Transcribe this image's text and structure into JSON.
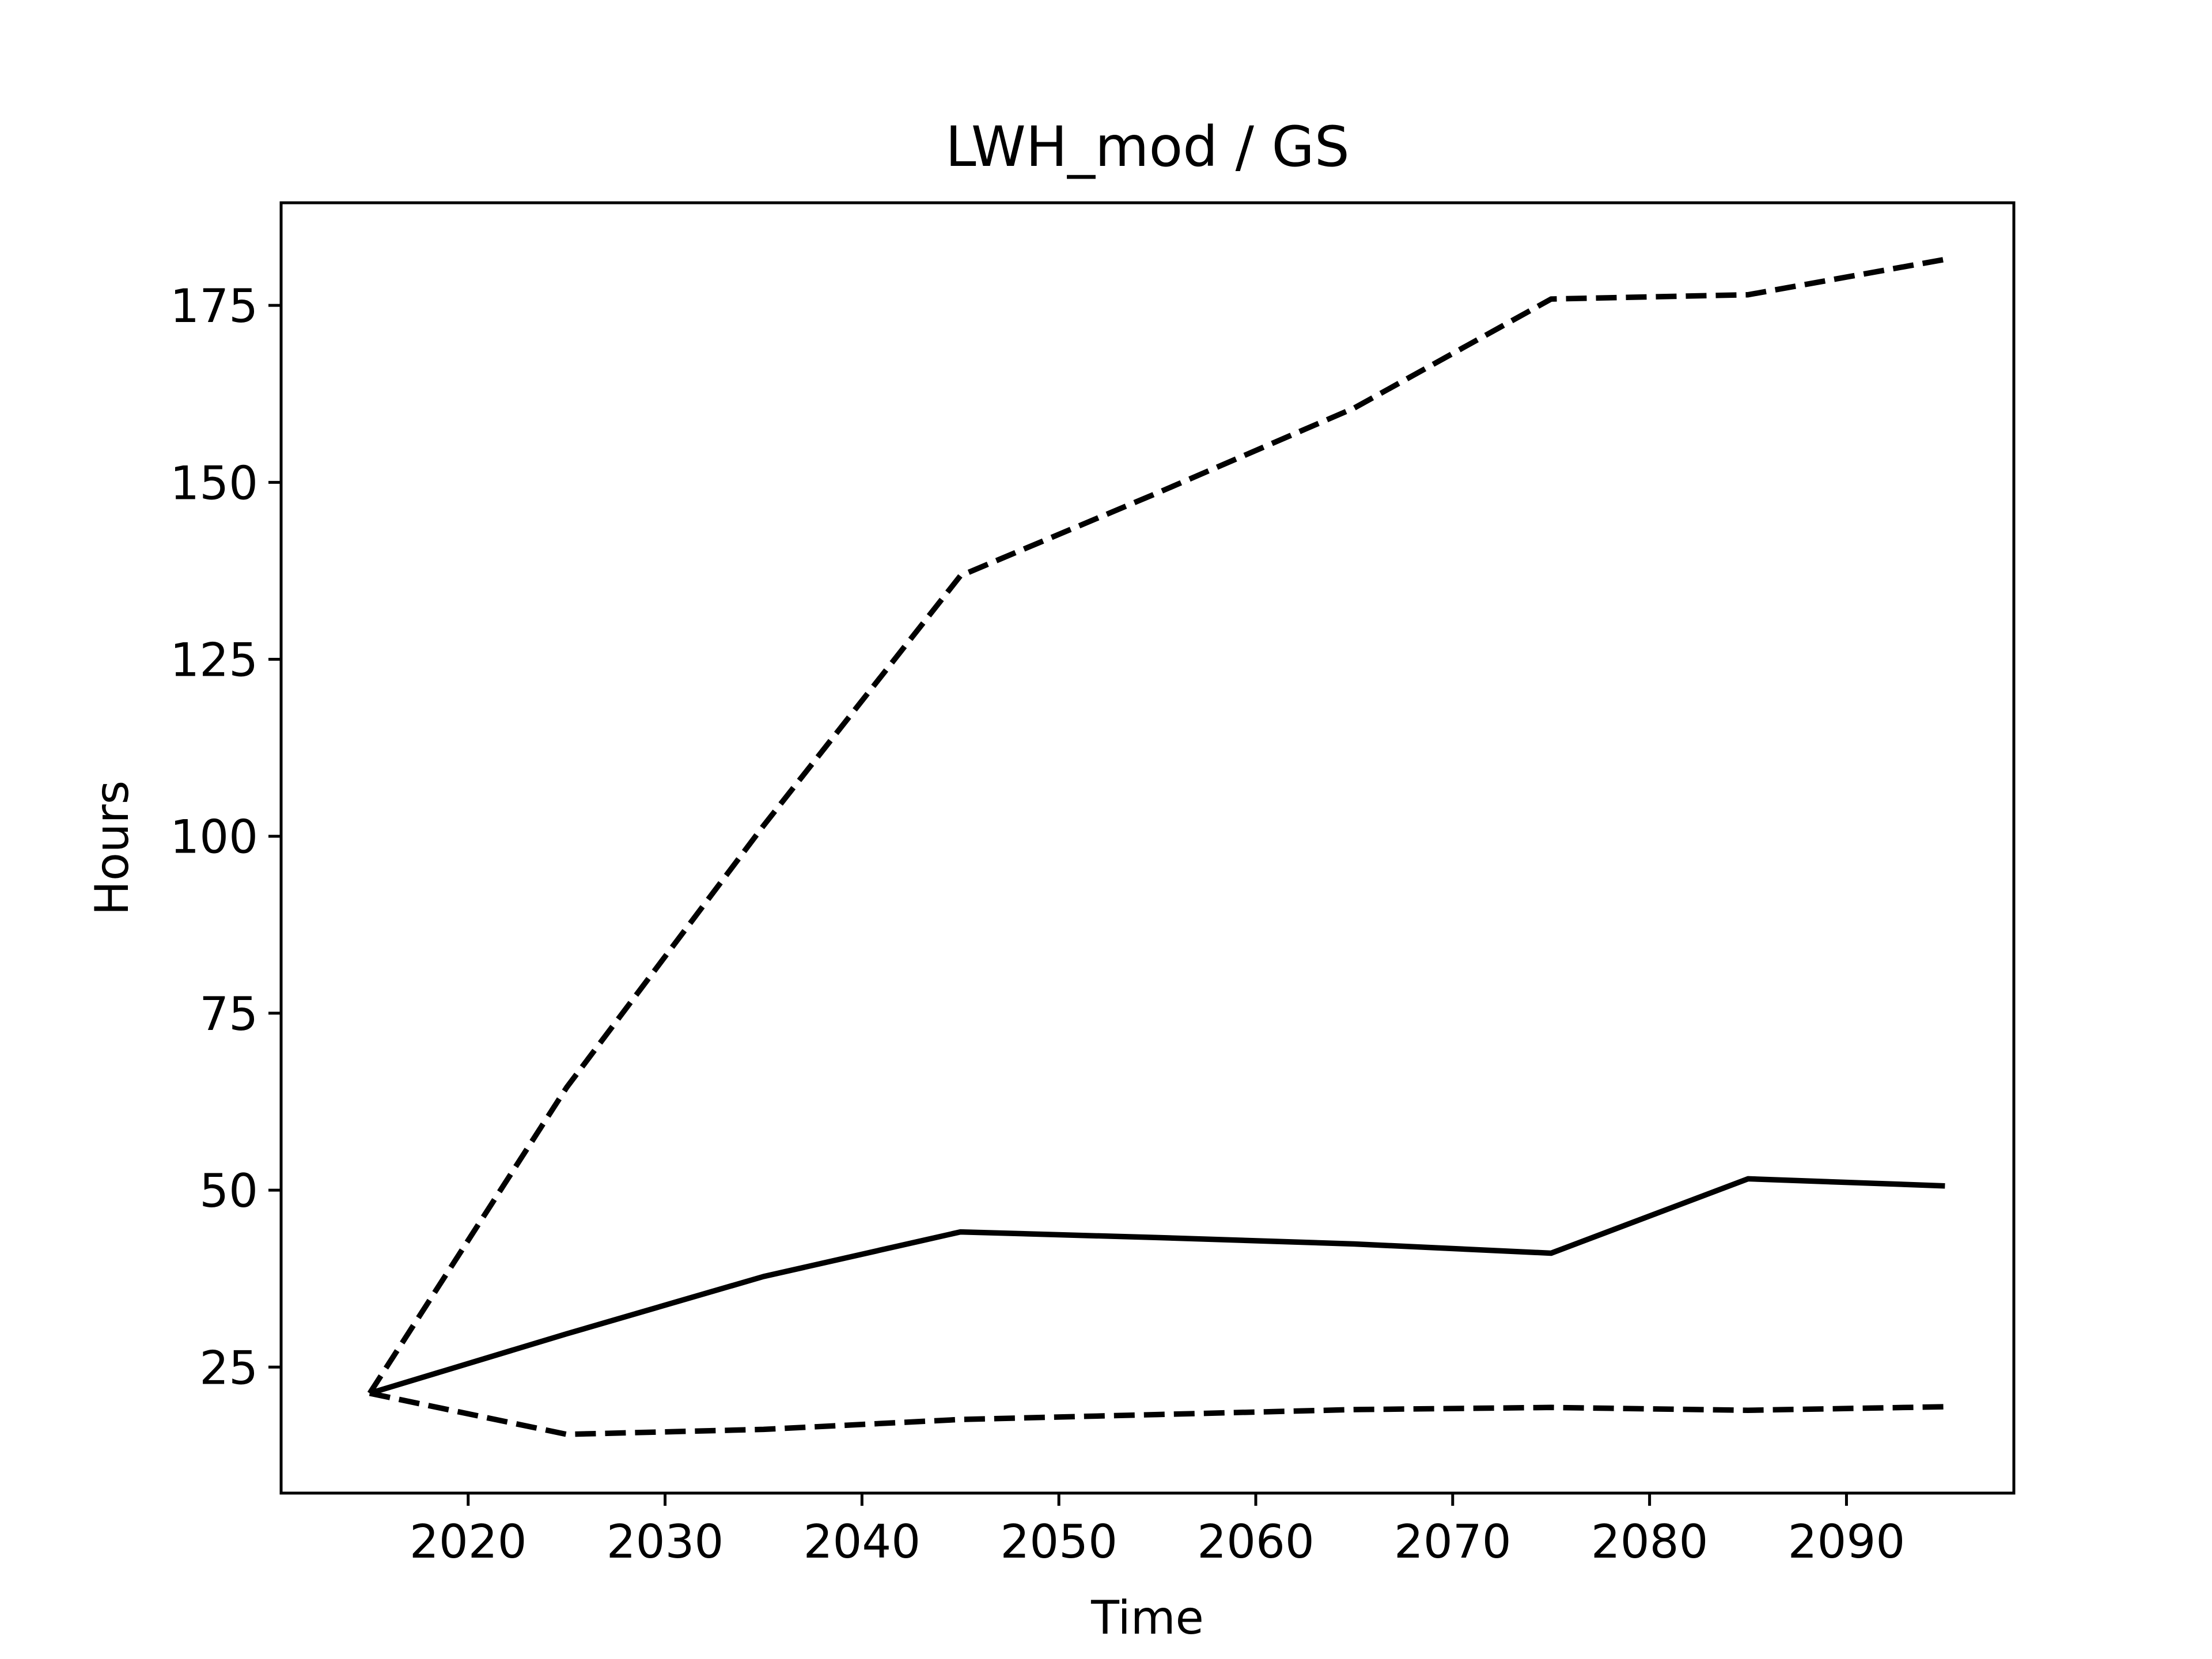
{
  "chart_data": {
    "type": "line",
    "title": "LWH_mod / GS",
    "xlabel": "Time",
    "ylabel": "Hours",
    "xlim": [
      2010.5,
      2098.5
    ],
    "ylim": [
      7.2,
      189.5
    ],
    "xticks": [
      2020,
      2030,
      2040,
      2050,
      2060,
      2070,
      2080,
      2090
    ],
    "yticks": [
      25,
      50,
      75,
      100,
      125,
      150,
      175
    ],
    "grid": false,
    "legend": "none",
    "x": [
      2015,
      2025,
      2035,
      2045,
      2055,
      2065,
      2075,
      2085,
      2095
    ],
    "series": [
      {
        "style": "solid",
        "color": "#000000",
        "values": [
          21.3,
          29.7,
          37.8,
          44.1,
          43.3,
          42.4,
          41.1,
          51.6,
          50.6
        ]
      },
      {
        "style": "dashed",
        "color": "#000000",
        "values": [
          21.3,
          64.5,
          101.5,
          136.8,
          148.5,
          160.5,
          175.9,
          176.5,
          181.5
        ]
      },
      {
        "style": "dashed",
        "color": "#000000",
        "values": [
          21.3,
          15.5,
          16.2,
          17.6,
          18.3,
          19.0,
          19.3,
          18.9,
          19.4
        ]
      }
    ]
  }
}
